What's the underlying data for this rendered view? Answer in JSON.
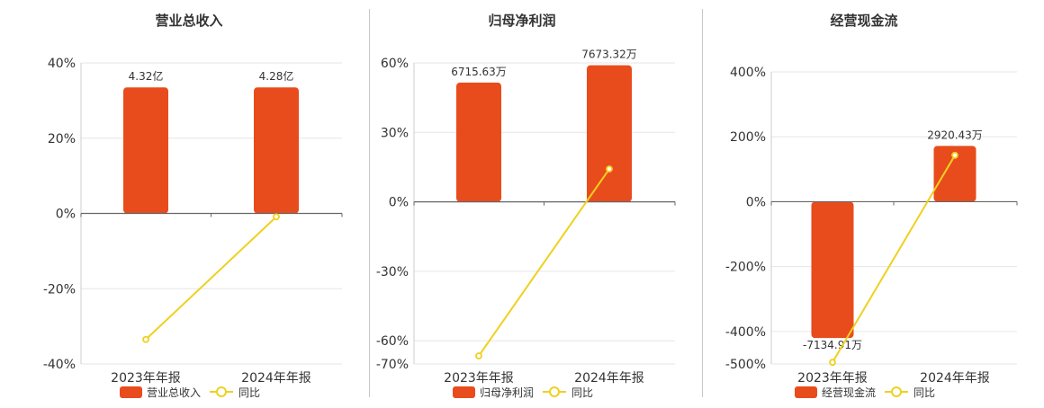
{
  "colors": {
    "bar": "#e84c1c",
    "line": "#f0d020",
    "grid": "#e6e6e6",
    "axis": "#666666",
    "text": "#333333"
  },
  "chart_data": [
    {
      "type": "bar",
      "title": "营业总收入",
      "categories": [
        "2023年年报",
        "2024年年报"
      ],
      "bar_labels": [
        "4.32亿",
        "4.28亿"
      ],
      "yoy_percent": [
        -33.5,
        -0.9
      ],
      "bar_heights_on_percent_axis": [
        33.5,
        33.5
      ],
      "y_ticks": [
        "40%",
        "20%",
        "0%",
        "-20%",
        "-40%"
      ],
      "ylim": [
        -40,
        40
      ],
      "legend": [
        "营业总收入",
        "同比"
      ]
    },
    {
      "type": "bar",
      "title": "归母净利润",
      "categories": [
        "2023年年报",
        "2024年年报"
      ],
      "bar_labels": [
        "6715.63万",
        "7673.32万"
      ],
      "yoy_percent": [
        -66.5,
        14.2
      ],
      "bar_heights_on_percent_axis": [
        51.5,
        59.0
      ],
      "y_ticks": [
        "60%",
        "30%",
        "0%",
        "-30%",
        "-60%",
        "-70%"
      ],
      "ylim": [
        -70,
        60
      ],
      "legend": [
        "归母净利润",
        "同比"
      ]
    },
    {
      "type": "bar",
      "title": "经营现金流",
      "categories": [
        "2023年年报",
        "2024年年报"
      ],
      "bar_labels": [
        "-7134.91万",
        "2920.43万"
      ],
      "yoy_percent": [
        -495,
        143
      ],
      "bar_heights_on_percent_axis": [
        -420,
        172
      ],
      "y_ticks": [
        "400%",
        "200%",
        "0%",
        "-200%",
        "-400%",
        "-500%"
      ],
      "ylim": [
        -500,
        400
      ],
      "legend": [
        "经营现金流",
        "同比"
      ]
    }
  ]
}
